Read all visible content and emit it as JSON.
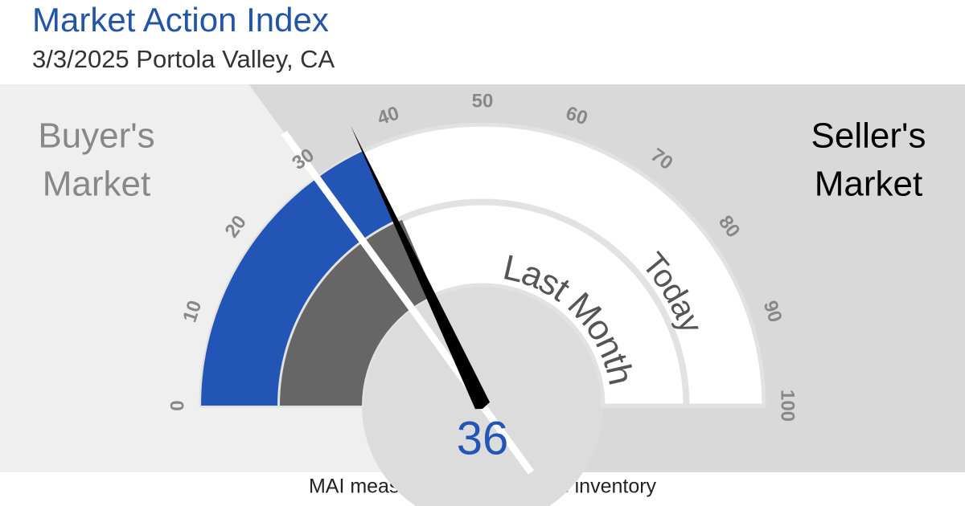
{
  "chart_data": {
    "type": "gauge",
    "title": "Market Action Index",
    "subtitle": "3/3/2025 Portola Valley, CA",
    "note": "MAI measures rate of sale vs inventory",
    "ylim": [
      0,
      100
    ],
    "yticks": [
      0,
      10,
      20,
      30,
      40,
      50,
      60,
      70,
      80,
      90,
      100
    ],
    "threshold": 30,
    "zones": [
      {
        "label": [
          "Buyer's",
          "Market"
        ],
        "color": "#888888"
      },
      {
        "label": [
          "Seller's",
          "Market"
        ],
        "color": "#000000"
      }
    ],
    "series": [
      {
        "name": "Today",
        "color": "#2255b5",
        "values": [
          36
        ]
      },
      {
        "name": "Last Month",
        "color": "#666666",
        "values": [
          37
        ]
      }
    ]
  }
}
